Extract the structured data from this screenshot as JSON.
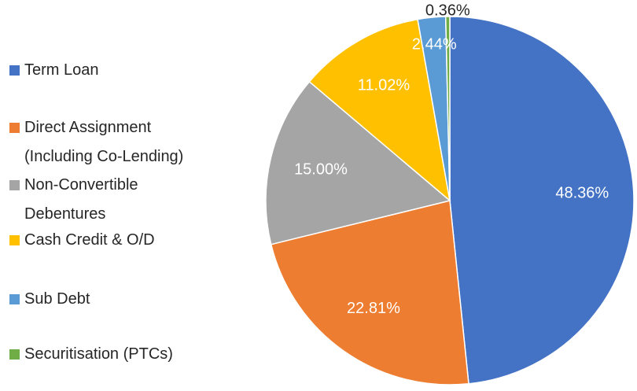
{
  "chart_data": {
    "type": "pie",
    "categories": [
      "Term Loan",
      "Direct Assignment (Including Co-Lending)",
      "Non-Convertible Debentures",
      "Cash Credit & O/D",
      "Sub Debt",
      "Securitisation (PTCs)"
    ],
    "values": [
      48.36,
      22.81,
      15,
      11.02,
      2.44,
      0.36
    ],
    "value_labels": [
      "48.36%",
      "22.81%",
      "15.00%",
      "11.02%",
      "2.44%",
      "0.36%"
    ],
    "colors": [
      "#4472c4",
      "#ed7d31",
      "#a5a5a5",
      "#ffc000",
      "#5b9bd5",
      "#70ad47"
    ],
    "legend": "left"
  }
}
